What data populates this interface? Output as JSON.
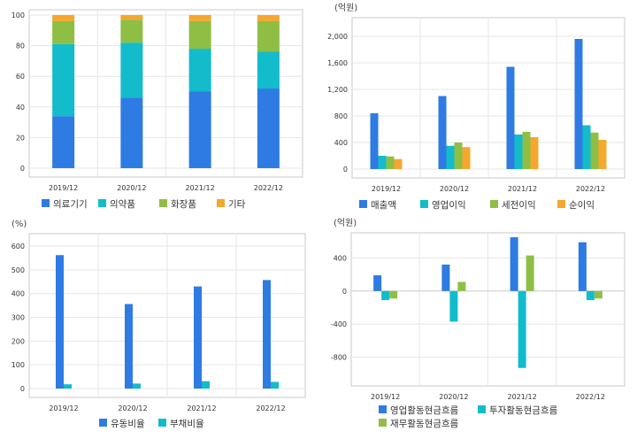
{
  "colors": {
    "blue": "#2e7be3",
    "cyan": "#12bccb",
    "green": "#8ebf44",
    "orange": "#f5a72e",
    "grid": "#e6e6e6",
    "frame": "#c8c8c8"
  },
  "chart_data": [
    {
      "type": "bar",
      "stacked": true,
      "title": "",
      "unit_label": "",
      "categories": [
        "2019/12",
        "2020/12",
        "2021/12",
        "2022/12"
      ],
      "yticks": [
        "0",
        "20",
        "40",
        "60",
        "80",
        "100"
      ],
      "ylim": [
        0,
        100
      ],
      "grid": true,
      "legend_position": "bottom",
      "series": [
        {
          "name": "의료기기",
          "color": "blue",
          "values": [
            34,
            46,
            50,
            52
          ]
        },
        {
          "name": "의약품",
          "color": "cyan",
          "values": [
            47,
            36,
            28,
            24
          ]
        },
        {
          "name": "화장품",
          "color": "green",
          "values": [
            15,
            15,
            18,
            20
          ]
        },
        {
          "name": "기타",
          "color": "orange",
          "values": [
            4,
            3,
            4,
            4
          ]
        }
      ]
    },
    {
      "type": "bar",
      "title": "",
      "unit_label": "(억원)",
      "categories": [
        "2019/12",
        "2020/12",
        "2021/12",
        "2022/12"
      ],
      "yticks": [
        "0",
        "400",
        "800",
        "1,200",
        "1,600",
        "2,000"
      ],
      "ylim": [
        0,
        2200
      ],
      "grid": true,
      "legend_position": "bottom",
      "series": [
        {
          "name": "매출액",
          "color": "blue",
          "values": [
            840,
            1100,
            1540,
            1960
          ]
        },
        {
          "name": "영업이익",
          "color": "cyan",
          "values": [
            200,
            350,
            520,
            660
          ]
        },
        {
          "name": "세전이익",
          "color": "green",
          "values": [
            190,
            400,
            560,
            550
          ]
        },
        {
          "name": "순이익",
          "color": "orange",
          "values": [
            150,
            330,
            480,
            440
          ]
        }
      ]
    },
    {
      "type": "bar",
      "title": "",
      "unit_label": "(%)",
      "categories": [
        "2019/12",
        "2020/12",
        "2021/12",
        "2022/12"
      ],
      "yticks": [
        "0",
        "100",
        "200",
        "300",
        "400",
        "500",
        "600"
      ],
      "ylim": [
        0,
        630
      ],
      "grid": true,
      "legend_position": "bottom",
      "series": [
        {
          "name": "유동비율",
          "color": "blue",
          "values": [
            562,
            356,
            430,
            457
          ]
        },
        {
          "name": "부채비율",
          "color": "cyan",
          "values": [
            18,
            21,
            31,
            28
          ]
        }
      ]
    },
    {
      "type": "bar",
      "title": "",
      "unit_label": "(억원)",
      "categories": [
        "2019/12",
        "2020/12",
        "2021/12",
        "2022/12"
      ],
      "yticks": [
        "-800",
        "-400",
        "0",
        "400"
      ],
      "ylim": [
        -1040,
        640
      ],
      "grid": true,
      "legend_position": "bottom",
      "series": [
        {
          "name": "영업활동현금흐름",
          "color": "blue",
          "values": [
            190,
            320,
            650,
            590
          ]
        },
        {
          "name": "투자활동현금흐름",
          "color": "cyan",
          "values": [
            -110,
            -370,
            -930,
            -110
          ]
        },
        {
          "name": "재무활동현금흐름",
          "color": "green",
          "values": [
            -90,
            110,
            430,
            -90
          ]
        }
      ]
    }
  ]
}
